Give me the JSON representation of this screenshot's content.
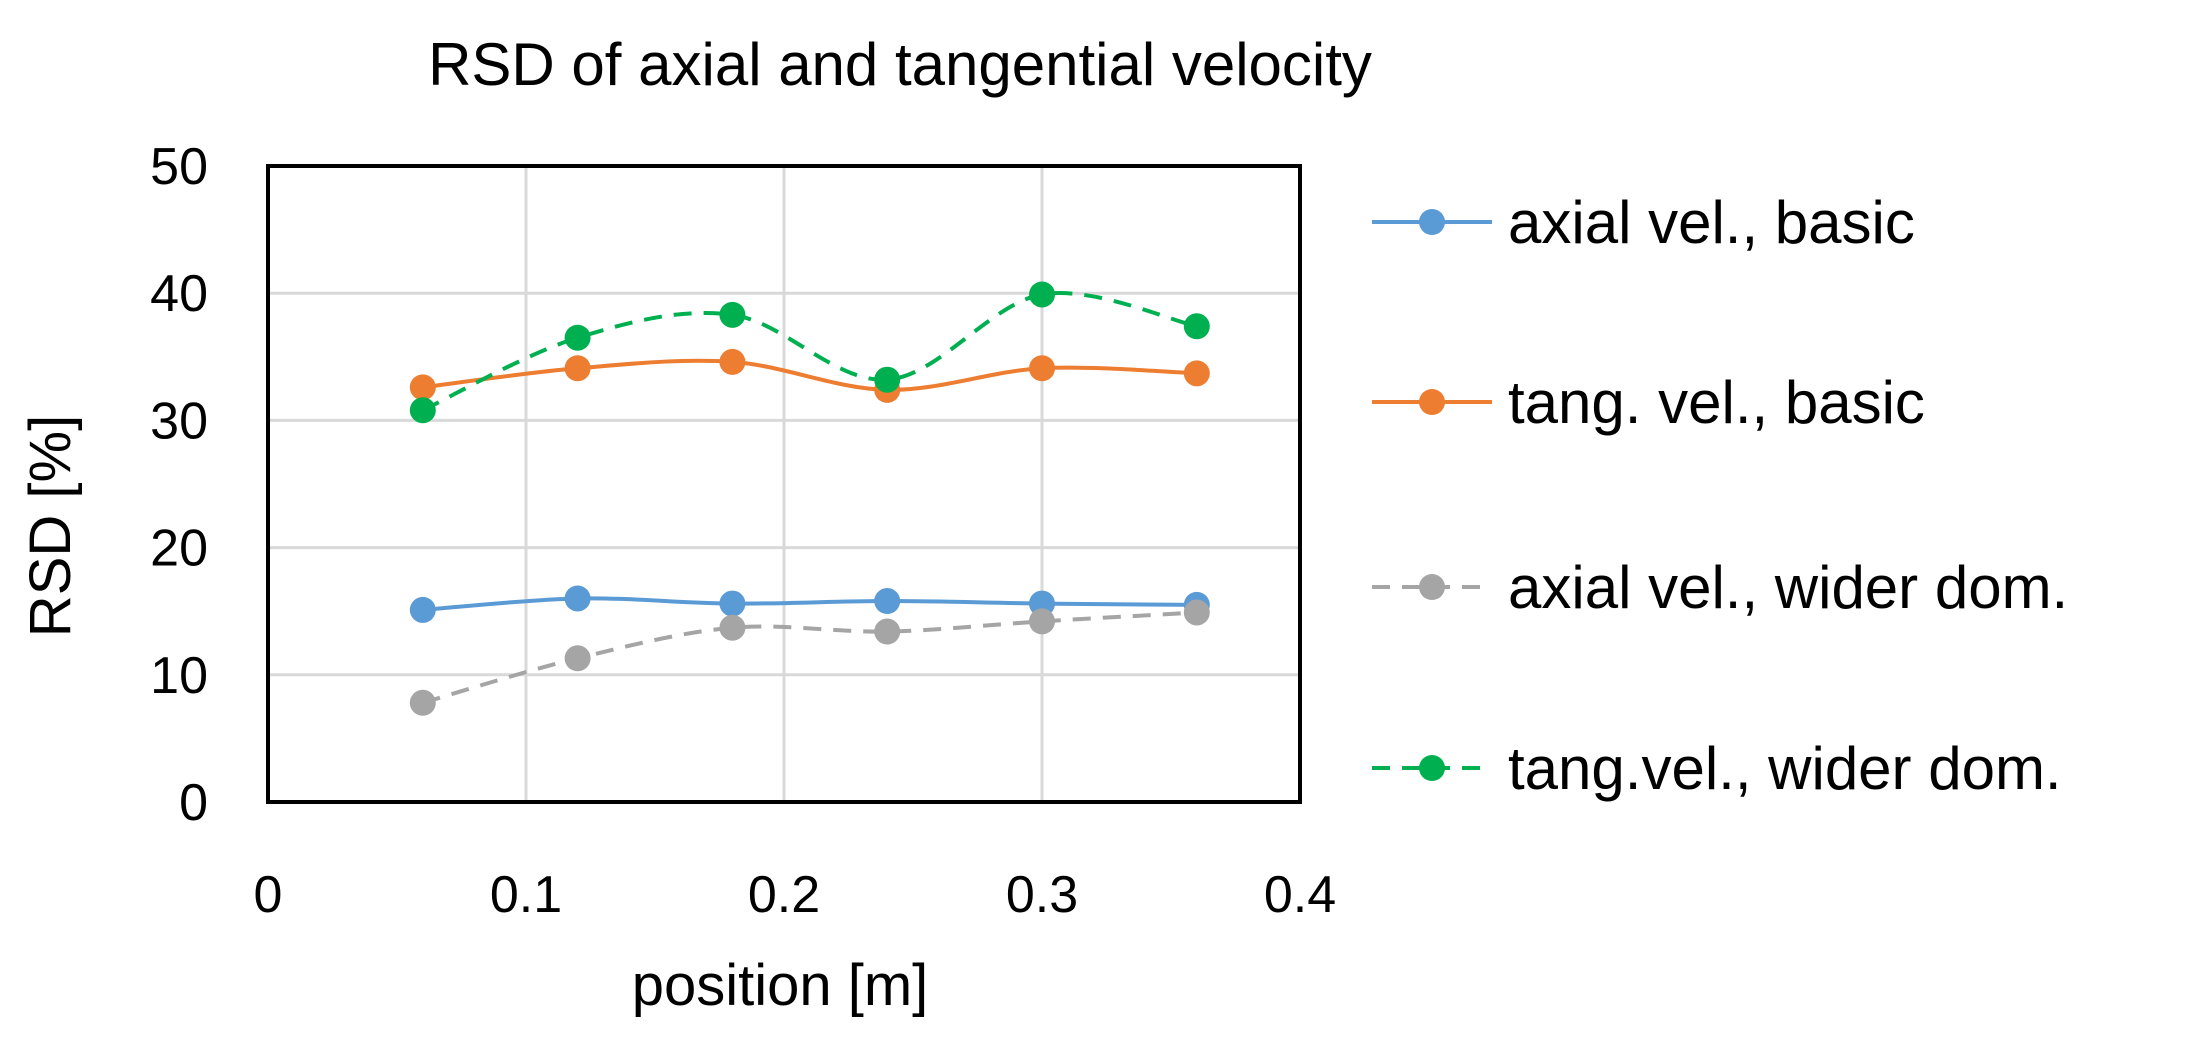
{
  "chart_data": {
    "type": "line",
    "title": "RSD of axial and tangential velocity",
    "xlabel": "position [m]",
    "ylabel": "RSD [%]",
    "xlim": [
      0,
      0.4
    ],
    "ylim": [
      0,
      50
    ],
    "x_ticks": [
      "0",
      "0.1",
      "0.2",
      "0.3",
      "0.4"
    ],
    "y_ticks": [
      "0",
      "10",
      "20",
      "30",
      "40",
      "50"
    ],
    "grid": true,
    "legend_position": "right",
    "x": [
      0.06,
      0.12,
      0.18,
      0.24,
      0.3,
      0.36
    ],
    "series": [
      {
        "name": "axial vel., basic",
        "color": "#5b9bd5",
        "dashed": false,
        "values": [
          15.1,
          16.0,
          15.6,
          15.8,
          15.6,
          15.5
        ]
      },
      {
        "name": "tang. vel., basic",
        "color": "#ed7d31",
        "dashed": false,
        "values": [
          32.6,
          34.1,
          34.6,
          32.4,
          34.1,
          33.7
        ]
      },
      {
        "name": "axial vel., wider dom.",
        "color": "#a5a5a5",
        "dashed": true,
        "values": [
          7.8,
          11.3,
          13.7,
          13.4,
          14.2,
          14.9
        ]
      },
      {
        "name": "tang.vel., wider dom.",
        "color": "#00b050",
        "dashed": true,
        "values": [
          30.8,
          36.5,
          38.3,
          33.2,
          39.9,
          37.4
        ]
      }
    ]
  }
}
